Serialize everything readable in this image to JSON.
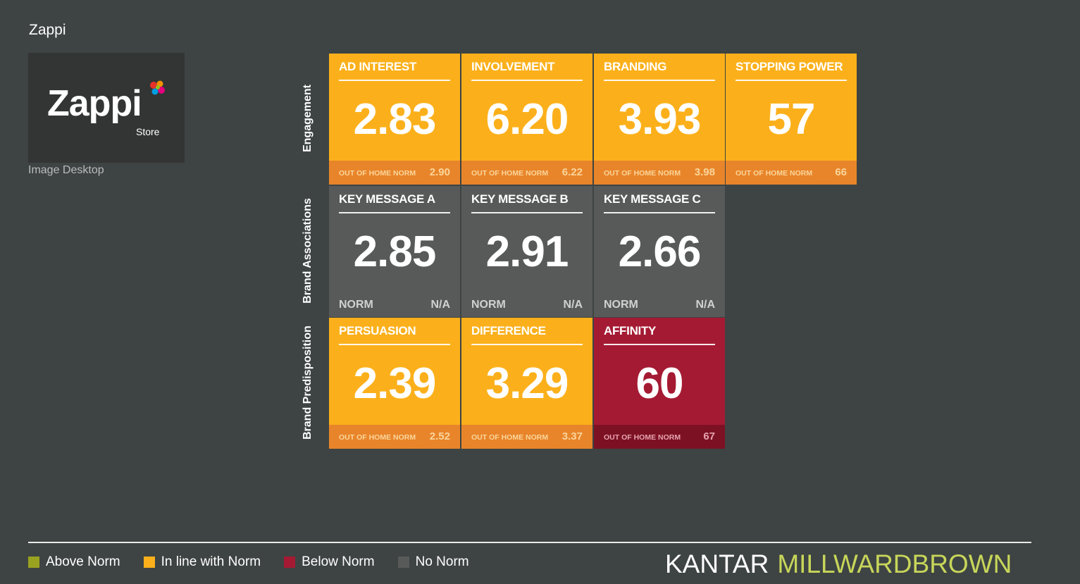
{
  "page": {
    "title": "Zappi"
  },
  "thumbnail": {
    "brand_word": "Zappi",
    "brand_sub": "Store",
    "caption": "Image Desktop"
  },
  "rows": [
    {
      "label": "Engagement"
    },
    {
      "label": "Brand Associations"
    },
    {
      "label": "Brand Predisposition"
    }
  ],
  "tiles": [
    {
      "title": "AD INTEREST",
      "value": "2.83",
      "norm_label": "OUT OF HOME NORM",
      "norm": "2.90",
      "status": "in-line"
    },
    {
      "title": "INVOLVEMENT",
      "value": "6.20",
      "norm_label": "OUT OF HOME NORM",
      "norm": "6.22",
      "status": "in-line"
    },
    {
      "title": "BRANDING",
      "value": "3.93",
      "norm_label": "OUT OF HOME NORM",
      "norm": "3.98",
      "status": "in-line"
    },
    {
      "title": "STOPPING POWER",
      "value": "57",
      "norm_label": "OUT OF HOME NORM",
      "norm": "66",
      "status": "in-line"
    },
    {
      "title": "KEY MESSAGE A",
      "value": "2.85",
      "norm_label": "NORM",
      "norm": "N/A",
      "status": "no-norm"
    },
    {
      "title": "KEY MESSAGE B",
      "value": "2.91",
      "norm_label": "NORM",
      "norm": "N/A",
      "status": "no-norm"
    },
    {
      "title": "KEY MESSAGE C",
      "value": "2.66",
      "norm_label": "NORM",
      "norm": "N/A",
      "status": "no-norm"
    },
    {
      "title": "PERSUASION",
      "value": "2.39",
      "norm_label": "OUT OF HOME NORM",
      "norm": "2.52",
      "status": "in-line"
    },
    {
      "title": "DIFFERENCE",
      "value": "3.29",
      "norm_label": "OUT OF HOME NORM",
      "norm": "3.37",
      "status": "in-line"
    },
    {
      "title": "AFFINITY",
      "value": "60",
      "norm_label": "OUT OF HOME NORM",
      "norm": "67",
      "status": "below"
    }
  ],
  "legend": [
    {
      "label": "Above Norm",
      "color": "#9aa31f"
    },
    {
      "label": "In line with Norm",
      "color": "#fbb01b"
    },
    {
      "label": "Below Norm",
      "color": "#a51a33"
    },
    {
      "label": "No Norm",
      "color": "#575a59"
    }
  ],
  "colors": {
    "background": "#3e4443",
    "in_line": "#fbb01b",
    "below": "#a51a33",
    "no_norm": "#575a59",
    "above": "#9aa31f"
  },
  "brand": {
    "part1": "KANTAR",
    "part2": "MILLWARDBROWN"
  }
}
